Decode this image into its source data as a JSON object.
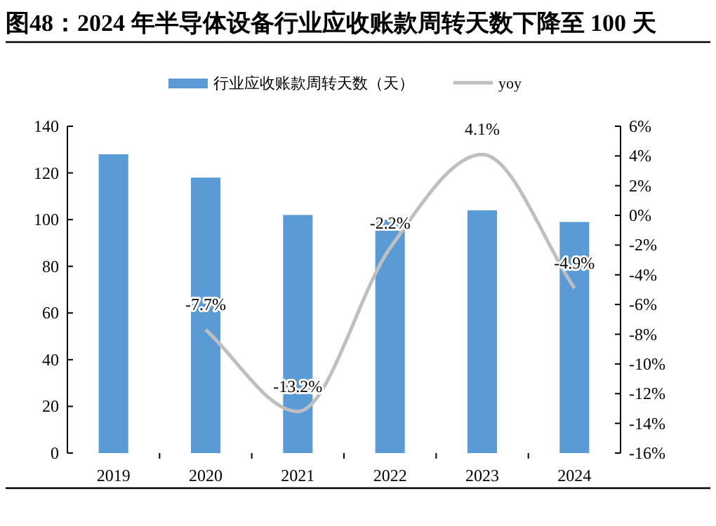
{
  "chart_data": {
    "type": "bar",
    "title": "图48：2024 年半导体设备行业应收账款周转天数下降至 100 天",
    "categories": [
      "2019",
      "2020",
      "2021",
      "2022",
      "2023",
      "2024"
    ],
    "series": [
      {
        "name": "行业应收账款周转天数（天）",
        "color": "#5b9bd5",
        "values": [
          128,
          118,
          102,
          100,
          104,
          99
        ]
      },
      {
        "name": "yoy",
        "type": "line",
        "axis": "y2",
        "color": "#bfbfbf",
        "values": [
          null,
          -7.7,
          -13.2,
          -2.2,
          4.1,
          -4.9
        ],
        "value_labels": [
          null,
          "-7.7%",
          "-13.2%",
          "-2.2%",
          "4.1%",
          "-4.9%"
        ],
        "marker": "none"
      }
    ],
    "ylim": [
      0,
      140
    ],
    "yticks": [
      0,
      20,
      40,
      60,
      80,
      100,
      120,
      140
    ],
    "y2lim": [
      -16,
      6
    ],
    "y2ticks": [
      {
        "value": -16,
        "label": "-16%"
      },
      {
        "value": -14,
        "label": "-14%"
      },
      {
        "value": -12,
        "label": "-12%"
      },
      {
        "value": -10,
        "label": "-10%"
      },
      {
        "value": -8,
        "label": "-8%"
      },
      {
        "value": -6,
        "label": "-6%"
      },
      {
        "value": -4,
        "label": "-4%"
      },
      {
        "value": -2,
        "label": "-2%"
      },
      {
        "value": 0,
        "label": "0%"
      },
      {
        "value": 2,
        "label": "2%"
      },
      {
        "value": 4,
        "label": "4%"
      },
      {
        "value": 6,
        "label": "6%"
      }
    ],
    "legend": "top",
    "grid": false
  }
}
